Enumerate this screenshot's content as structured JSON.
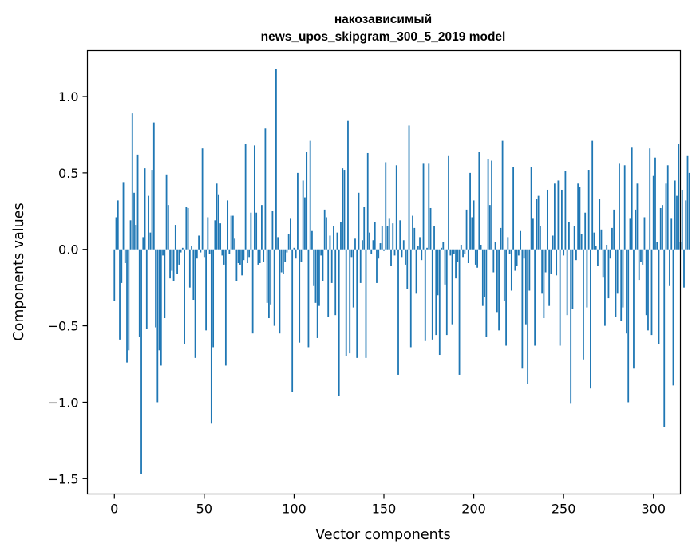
{
  "chart_data": {
    "type": "bar",
    "title_line1": "накозависимый",
    "title_line2": "news_upos_skipgram_300_5_2019 model",
    "xlabel": "Vector components",
    "ylabel": "Components values",
    "xlim": [
      -15,
      315
    ],
    "ylim": [
      -1.6,
      1.3
    ],
    "xticks": [
      0,
      50,
      100,
      150,
      200,
      250,
      300
    ],
    "xtick_labels": [
      "0",
      "50",
      "100",
      "150",
      "200",
      "250",
      "300"
    ],
    "yticks": [
      -1.5,
      -1.0,
      -0.5,
      0.0,
      0.5,
      1.0
    ],
    "ytick_labels": [
      "−1.5",
      "−1.0",
      "−0.5",
      "0.0",
      "0.5",
      "1.0"
    ],
    "bar_color": "#1f77b4",
    "values": [
      -0.34,
      0.21,
      0.32,
      -0.59,
      -0.22,
      0.44,
      -0.09,
      -0.74,
      -0.66,
      0.19,
      0.89,
      0.37,
      0.16,
      0.62,
      -0.57,
      -1.47,
      0.08,
      0.53,
      -0.52,
      0.35,
      0.11,
      0.52,
      0.83,
      -0.51,
      -1.0,
      -0.66,
      -0.76,
      -0.04,
      -0.45,
      0.49,
      0.29,
      -0.19,
      -0.14,
      -0.21,
      0.16,
      -0.16,
      -0.1,
      -0.02,
      0.01,
      -0.62,
      0.28,
      0.27,
      -0.25,
      0.02,
      -0.33,
      -0.71,
      -0.06,
      0.09,
      -0.02,
      0.66,
      -0.05,
      -0.53,
      0.21,
      -0.03,
      -1.14,
      -0.64,
      0.19,
      0.43,
      0.36,
      0.17,
      -0.04,
      -0.1,
      -0.76,
      0.32,
      -0.03,
      0.22,
      0.22,
      0.07,
      -0.21,
      -0.09,
      -0.1,
      -0.17,
      -0.07,
      0.69,
      -0.09,
      -0.05,
      0.24,
      -0.55,
      0.68,
      0.24,
      -0.1,
      -0.09,
      0.29,
      -0.08,
      0.79,
      -0.35,
      -0.45,
      -0.36,
      0.25,
      -0.5,
      1.18,
      0.08,
      -0.55,
      -0.15,
      -0.16,
      -0.08,
      -0.02,
      0.1,
      0.2,
      -0.93,
      0.01,
      -0.06,
      0.5,
      -0.61,
      -0.08,
      0.45,
      0.34,
      0.64,
      -0.64,
      0.71,
      0.12,
      -0.24,
      -0.35,
      -0.58,
      -0.37,
      -0.04,
      -0.21,
      0.26,
      0.21,
      -0.44,
      0.09,
      -0.22,
      0.15,
      -0.43,
      0.11,
      -0.96,
      0.18,
      0.53,
      0.52,
      -0.7,
      0.84,
      -0.68,
      -0.05,
      -0.38,
      0.07,
      -0.71,
      0.37,
      -0.22,
      0.06,
      0.28,
      -0.71,
      0.63,
      0.11,
      -0.03,
      0.06,
      0.18,
      -0.22,
      -0.06,
      0.04,
      0.15,
      -0.01,
      0.57,
      0.15,
      0.2,
      -0.11,
      0.17,
      -0.04,
      0.55,
      -0.82,
      0.19,
      -0.05,
      0.06,
      -0.1,
      -0.26,
      0.81,
      -0.64,
      0.22,
      0.14,
      -0.29,
      0.02,
      0.08,
      -0.07,
      0.56,
      -0.6,
      0.01,
      0.56,
      0.27,
      -0.59,
      0.15,
      -0.56,
      -0.3,
      -0.69,
      0.01,
      0.05,
      -0.23,
      -0.56,
      0.61,
      -0.04,
      -0.49,
      -0.03,
      -0.19,
      -0.08,
      -0.82,
      0.03,
      -0.05,
      -0.03,
      0.26,
      -0.09,
      0.5,
      0.21,
      0.32,
      -0.1,
      -0.12,
      0.64,
      0.03,
      -0.37,
      -0.31,
      -0.57,
      0.59,
      0.29,
      0.58,
      -0.15,
      0.05,
      -0.41,
      -0.53,
      0.14,
      0.71,
      -0.34,
      -0.63,
      0.08,
      -0.03,
      -0.27,
      0.54,
      -0.14,
      -0.11,
      -0.04,
      0.12,
      -0.78,
      -0.06,
      -0.49,
      -0.88,
      -0.27,
      0.54,
      0.2,
      -0.63,
      0.33,
      0.35,
      0.15,
      -0.29,
      -0.45,
      -0.15,
      0.39,
      -0.37,
      -0.16,
      0.09,
      0.43,
      -0.17,
      0.45,
      -0.63,
      0.39,
      -0.04,
      0.51,
      -0.43,
      0.18,
      -1.01,
      -0.39,
      0.15,
      -0.07,
      0.43,
      0.41,
      0.1,
      -0.72,
      0.24,
      -0.38,
      0.52,
      -0.91,
      0.71,
      0.11,
      0.02,
      -0.11,
      0.33,
      0.13,
      -0.18,
      -0.5,
      0.03,
      -0.32,
      -0.06,
      0.14,
      0.26,
      -0.44,
      -0.29,
      0.56,
      -0.47,
      -0.38,
      0.55,
      -0.55,
      -1.0,
      0.2,
      0.67,
      -0.78,
      0.26,
      0.43,
      -0.2,
      -0.08,
      -0.1,
      0.21,
      -0.43,
      -0.53,
      0.66,
      -0.56,
      0.48,
      0.6,
      0.05,
      -0.62,
      0.27,
      0.29,
      -1.16,
      0.43,
      0.55,
      -0.24,
      0.2,
      -0.89,
      0.45,
      0.35,
      0.69,
      0.05,
      0.39,
      -0.25,
      0.32,
      0.61,
      0.5
    ]
  }
}
